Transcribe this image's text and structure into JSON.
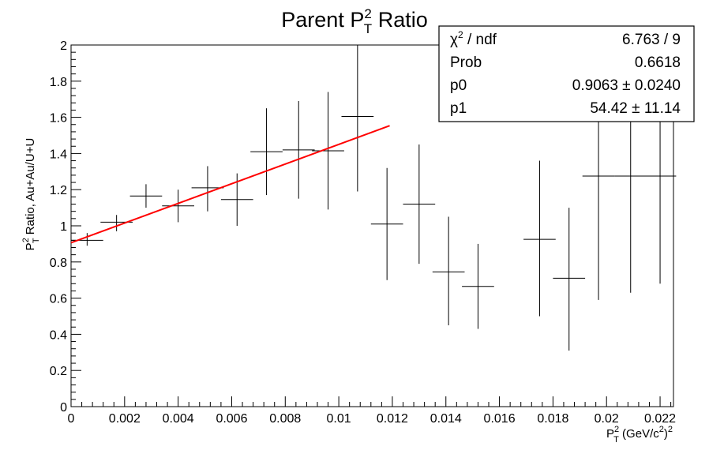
{
  "chart_data": {
    "type": "scatter",
    "title": {
      "main": "Parent P",
      "sup": "2",
      "sub": "T",
      "rest": " Ratio"
    },
    "xlabel": {
      "main": "P",
      "sup": "2",
      "sub": "T",
      "rest": " (GeV/c",
      "sup2": "2",
      "rest2": ")",
      "sup3": "2"
    },
    "ylabel": {
      "main": "P",
      "sup": "2",
      "sub": "T",
      "rest": " Ratio, Au+Au/U+U"
    },
    "xlim": [
      0,
      0.0225
    ],
    "ylim": [
      0,
      2
    ],
    "x_ticks": [
      "0",
      "0.002",
      "0.004",
      "0.006",
      "0.008",
      "0.01",
      "0.012",
      "0.014",
      "0.016",
      "0.018",
      "0.02",
      "0.022"
    ],
    "x_tick_values": [
      0,
      0.002,
      0.004,
      0.006,
      0.008,
      0.01,
      0.012,
      0.014,
      0.016,
      0.018,
      0.02,
      0.022
    ],
    "y_ticks": [
      "0",
      "0.2",
      "0.4",
      "0.6",
      "0.8",
      "1",
      "1.2",
      "1.4",
      "1.6",
      "1.8",
      "2"
    ],
    "y_tick_values": [
      0,
      0.2,
      0.4,
      0.6,
      0.8,
      1.0,
      1.2,
      1.4,
      1.6,
      1.8,
      2.0
    ],
    "grid": false,
    "points": [
      {
        "x": 0.0006,
        "xerr": 0.0006,
        "y": 0.92,
        "ylo": 0.89,
        "yhi": 0.96
      },
      {
        "x": 0.0017,
        "xerr": 0.0006,
        "y": 1.02,
        "ylo": 0.97,
        "yhi": 1.06
      },
      {
        "x": 0.0028,
        "xerr": 0.0006,
        "y": 1.165,
        "ylo": 1.1,
        "yhi": 1.23
      },
      {
        "x": 0.004,
        "xerr": 0.0006,
        "y": 1.11,
        "ylo": 1.02,
        "yhi": 1.2
      },
      {
        "x": 0.0051,
        "xerr": 0.0006,
        "y": 1.21,
        "ylo": 1.08,
        "yhi": 1.33
      },
      {
        "x": 0.0062,
        "xerr": 0.0006,
        "y": 1.145,
        "ylo": 1.0,
        "yhi": 1.29
      },
      {
        "x": 0.0073,
        "xerr": 0.0006,
        "y": 1.41,
        "ylo": 1.17,
        "yhi": 1.65
      },
      {
        "x": 0.0085,
        "xerr": 0.0006,
        "y": 1.42,
        "ylo": 1.15,
        "yhi": 1.69
      },
      {
        "x": 0.0096,
        "xerr": 0.0006,
        "y": 1.415,
        "ylo": 1.09,
        "yhi": 1.74
      },
      {
        "x": 0.0107,
        "xerr": 0.0006,
        "y": 1.605,
        "ylo": 1.19,
        "yhi": 2.0
      },
      {
        "x": 0.0118,
        "xerr": 0.0006,
        "y": 1.01,
        "ylo": 0.7,
        "yhi": 1.32
      },
      {
        "x": 0.013,
        "xerr": 0.0006,
        "y": 1.12,
        "ylo": 0.79,
        "yhi": 1.45
      },
      {
        "x": 0.0141,
        "xerr": 0.0006,
        "y": 0.745,
        "ylo": 0.45,
        "yhi": 1.05
      },
      {
        "x": 0.0152,
        "xerr": 0.0006,
        "y": 0.665,
        "ylo": 0.43,
        "yhi": 0.9
      },
      {
        "x": 0.0175,
        "xerr": 0.0006,
        "y": 0.925,
        "ylo": 0.5,
        "yhi": 1.36
      },
      {
        "x": 0.0186,
        "xerr": 0.0006,
        "y": 0.71,
        "ylo": 0.31,
        "yhi": 1.1
      },
      {
        "x": 0.0197,
        "xerr": 0.0006,
        "y": 1.275,
        "ylo": 0.59,
        "yhi": 2.0
      },
      {
        "x": 0.0209,
        "xerr": 0.0006,
        "y": 1.275,
        "ylo": 0.63,
        "yhi": 2.0
      },
      {
        "x": 0.022,
        "xerr": 0.0006,
        "y": 1.275,
        "ylo": 0.68,
        "yhi": 2.0
      }
    ],
    "fit": {
      "type": "linear",
      "x_range": [
        0,
        0.0119
      ],
      "p0": 0.9063,
      "p1": 54.42,
      "color": "#ff0000"
    },
    "marker_color": "#000000",
    "stats": {
      "placement": "top-right",
      "rows": [
        {
          "label": "χ",
          "label_sup": "2",
          "label_rest": " / ndf",
          "value": "6.763 / 9"
        },
        {
          "label": "Prob",
          "label_sup": "",
          "label_rest": "",
          "value": "0.6618"
        },
        {
          "label": "p0",
          "label_sup": "",
          "label_rest": "",
          "value": "0.9063 ± 0.0240"
        },
        {
          "label": "p1",
          "label_sup": "",
          "label_rest": "",
          "value": "54.42 ± 11.14"
        }
      ]
    }
  }
}
